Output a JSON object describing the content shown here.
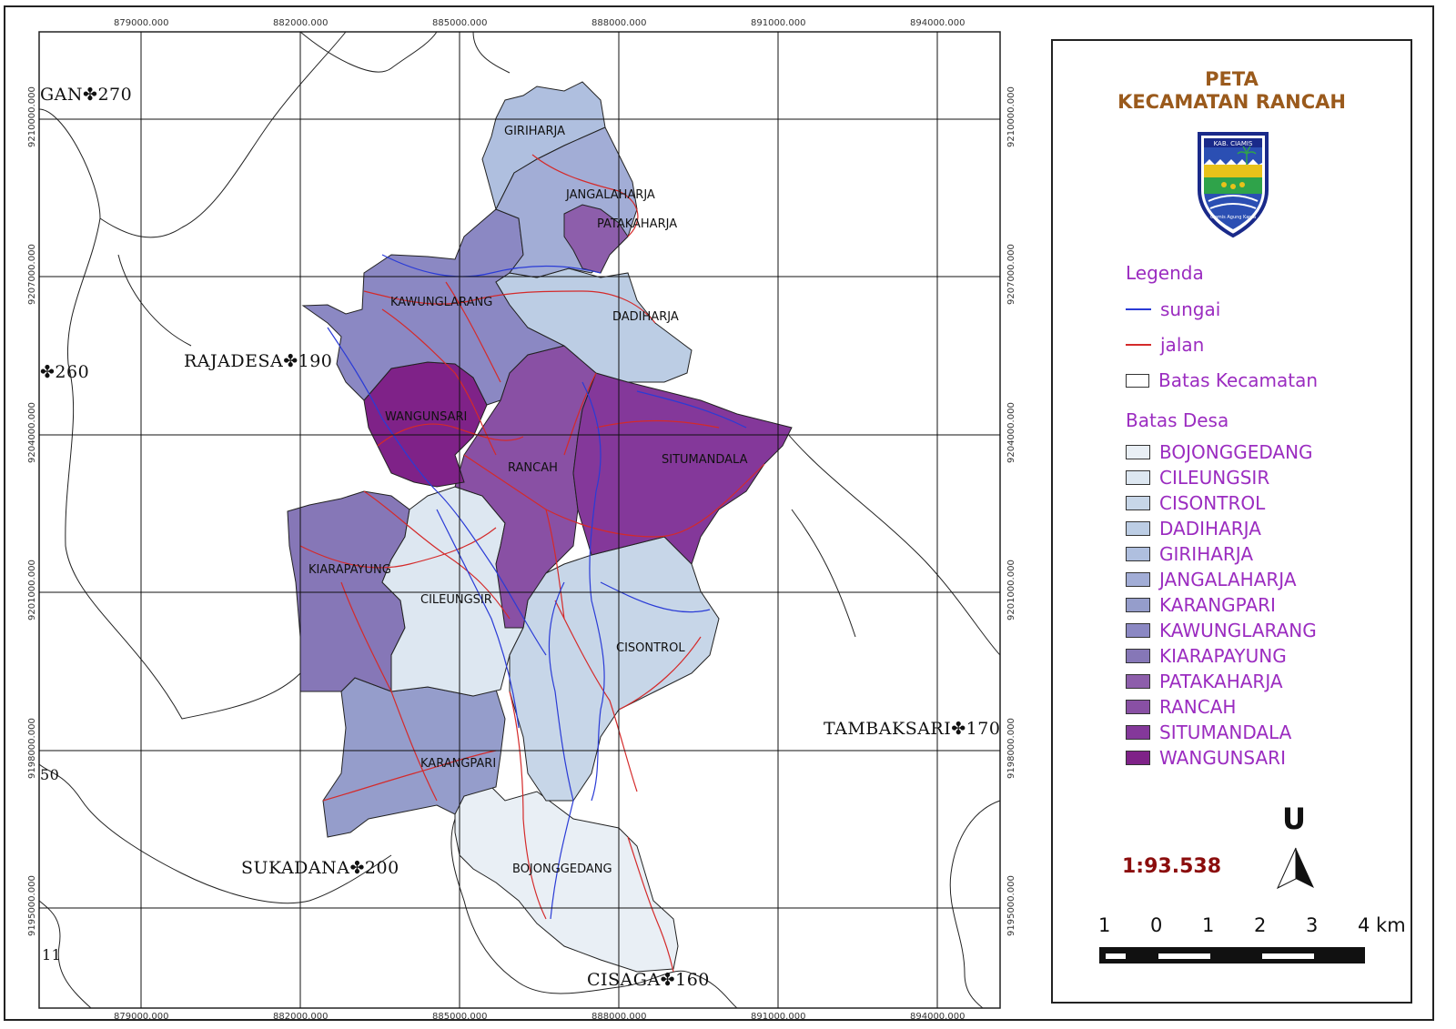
{
  "map": {
    "grid_x_labels": [
      "879000.000",
      "882000.000",
      "885000.000",
      "888000.000",
      "891000.000",
      "894000.000"
    ],
    "grid_y_labels": [
      "9210000.000",
      "9207000.000",
      "9204000.000",
      "9201000.000",
      "9198000.000",
      "9195000.000"
    ],
    "villages": [
      "GIRIHARJA",
      "JANGALAHARJA",
      "PATAKAHARJA",
      "KAWUNGLARANG",
      "DADIHARJA",
      "WANGUNSARI",
      "RANCAH",
      "SITUMANDALA",
      "KIARAPAYUNG",
      "CILEUNGSIR",
      "CISONTROL",
      "KARANGPARI",
      "BOJONGGEDANG"
    ],
    "neighbors": [
      "GAN✤270",
      "RAJADESA✤190",
      "✤260",
      "TAMBAKSARI✤170",
      "SUKADANA✤200",
      "CISAGA✤160",
      "50",
      "11"
    ],
    "colors": {
      "BOJONGGEDANG": "#e9eff5",
      "CILEUNGSIR": "#dde7f1",
      "CISONTROL": "#c7d6e8",
      "DADIHARJA": "#bccde4",
      "GIRIHARJA": "#afbfdf",
      "JANGALAHARJA": "#a2add6",
      "KARANGPARI": "#959dcb",
      "KAWUNGLARANG": "#8b88c3",
      "KIARAPAYUNG": "#8677b7",
      "PATAKAHARJA": "#8d5eab",
      "RANCAH": "#8950a4",
      "SITUMANDALA": "#84389a",
      "WANGUNSARI": "#7f2288"
    }
  },
  "legend": {
    "title_line1": "PETA",
    "title_line2": "KECAMATAN RANCAH",
    "logo_text_top": "KAB. CIAMIS",
    "logo_text_bottom": "Ciamis Agung Karsa",
    "heading": "Legenda",
    "items": [
      {
        "label": "sungai",
        "color": "#2a3bd6",
        "kind": "line"
      },
      {
        "label": "jalan",
        "color": "#d42a2a",
        "kind": "line"
      },
      {
        "label": "Batas Kecamatan",
        "color": "#222222",
        "kind": "box"
      }
    ],
    "desa_heading": "Batas Desa",
    "desa": [
      {
        "label": "BOJONGGEDANG",
        "color": "#e9eff5"
      },
      {
        "label": "CILEUNGSIR",
        "color": "#dde7f1"
      },
      {
        "label": "CISONTROL",
        "color": "#c7d6e8"
      },
      {
        "label": "DADIHARJA",
        "color": "#bccde4"
      },
      {
        "label": "GIRIHARJA",
        "color": "#afbfdf"
      },
      {
        "label": "JANGALAHARJA",
        "color": "#a2add6"
      },
      {
        "label": "KARANGPARI",
        "color": "#959dcb"
      },
      {
        "label": "KAWUNGLARANG",
        "color": "#8b88c3"
      },
      {
        "label": "KIARAPAYUNG",
        "color": "#8677b7"
      },
      {
        "label": "PATAKAHARJA",
        "color": "#8d5eab"
      },
      {
        "label": "RANCAH",
        "color": "#8950a4"
      },
      {
        "label": "SITUMANDALA",
        "color": "#84389a"
      },
      {
        "label": "WANGUNSARI",
        "color": "#7f2288"
      }
    ],
    "scale_ratio": "1:93.538",
    "north": "U",
    "scale_numbers": [
      "1",
      "0",
      "1",
      "2",
      "3",
      "4 km"
    ]
  }
}
